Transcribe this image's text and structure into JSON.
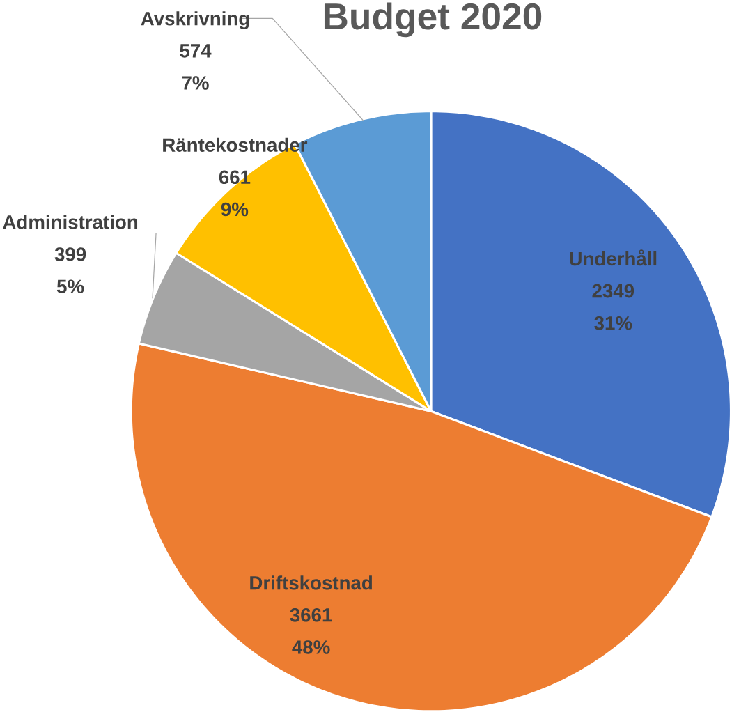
{
  "chart_data": {
    "type": "pie",
    "title": "Budget 2020",
    "categories": [
      "Underhåll",
      "Driftskostnad",
      "Administration",
      "Räntekostnader",
      "Avskrivning"
    ],
    "values": [
      2349,
      3661,
      399,
      661,
      574
    ],
    "colors": [
      "#4472c4",
      "#ed7d31",
      "#a5a5a5",
      "#ffc000",
      "#5b9bd5"
    ],
    "value_labels": [
      "2349",
      "3661",
      "399",
      "661",
      "574"
    ],
    "annotations": [
      {
        "text": "31%",
        "x": "Underhåll"
      },
      {
        "text": "48%",
        "x": "Driftskostnad"
      },
      {
        "text": "5%",
        "x": "Administration"
      },
      {
        "text": "9%",
        "x": "Räntekostnader"
      },
      {
        "text": "7%",
        "x": "Avskrivning"
      }
    ]
  }
}
